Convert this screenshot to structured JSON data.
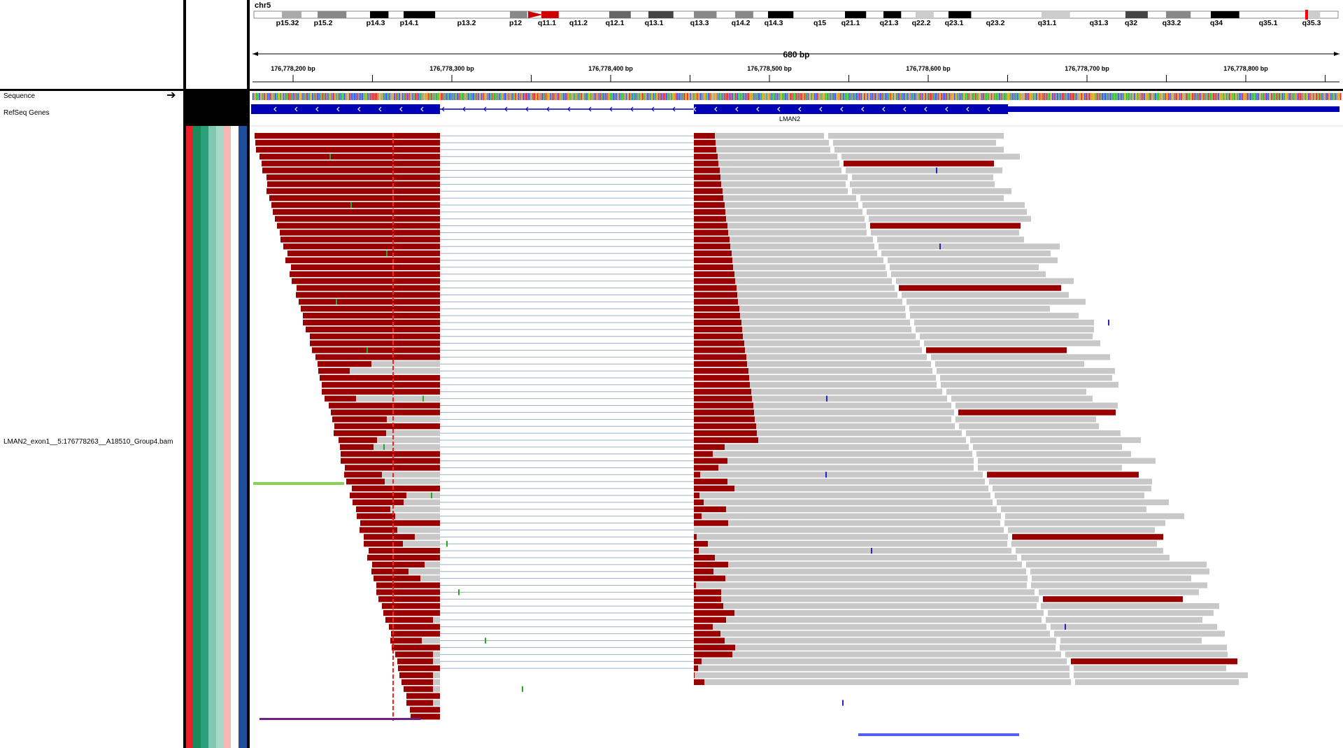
{
  "ideogram": {
    "chromosome": "chr5",
    "bands": [
      "p15.32",
      "p15.2",
      "p14.3",
      "p14.1",
      "p13.2",
      "p12",
      "q11.1",
      "q11.2",
      "q12.1",
      "q13.1",
      "q13.3",
      "q14.2",
      "q14.3",
      "q15",
      "q21.1",
      "q21.3",
      "q22.2",
      "q23.1",
      "q23.2",
      "q31.1",
      "q31.3",
      "q32",
      "q33.2",
      "q34",
      "q35.1",
      "q35.3"
    ]
  },
  "ruler": {
    "span": "680 bp",
    "ticks": [
      "176,778,200 bp",
      "176,778,300 bp",
      "176,778,400 bp",
      "176,778,500 bp",
      "176,778,600 bp",
      "176,778,700 bp",
      "176,778,800 bp"
    ]
  },
  "tracks": {
    "sequence_label": "Sequence",
    "genes_label": "RefSeq Genes",
    "bam_label": "LMAN2_exon1__5:176778263__A18510_Group4.bam",
    "gene_name": "LMAN2"
  },
  "attribute_colors": [
    "#e8202a",
    "#1a8a5a",
    "#2aa07a",
    "#7fc9b0",
    "#a8d8c8",
    "#f7b6b2",
    "#ffffff",
    "#1e4e9a"
  ],
  "colors": {
    "read": "#c8c8c8",
    "read_insert": "#990000",
    "gene": "#0000b4",
    "junction": "#9ab0c0"
  }
}
